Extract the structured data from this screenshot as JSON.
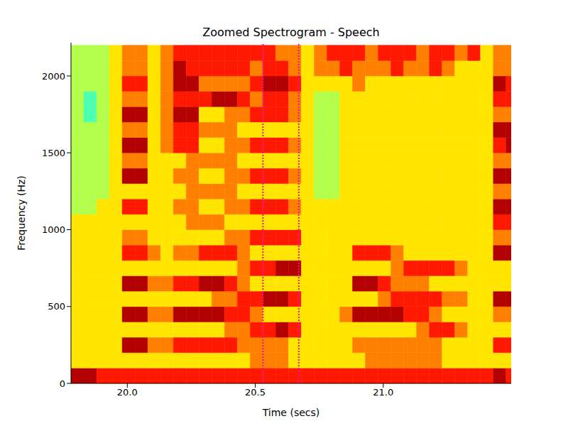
{
  "chart_data": {
    "type": "heatmap",
    "title": "Zoomed Spectrogram - Speech",
    "xlabel": "Time (secs)",
    "ylabel": "Frequency (Hz)",
    "xlim": [
      19.78,
      21.5
    ],
    "xticks": [
      {
        "value": 20,
        "label": "20.0"
      },
      {
        "value": 20.5,
        "label": "20.5"
      },
      {
        "value": 21,
        "label": "21.0"
      }
    ],
    "ylim": [
      0,
      2217
    ],
    "yticks": [
      0,
      500,
      1000,
      1500,
      2000
    ],
    "grid": false,
    "x_edges": [
      19.78,
      19.83,
      19.88,
      19.93,
      19.98,
      20.03,
      20.08,
      20.13,
      20.18,
      20.23,
      20.28,
      20.33,
      20.38,
      20.43,
      20.48,
      20.53,
      20.58,
      20.63,
      20.68,
      20.73,
      20.78,
      20.83,
      20.88,
      20.93,
      20.98,
      21.03,
      21.08,
      21.13,
      21.18,
      21.23,
      21.28,
      21.33,
      21.38,
      21.43,
      21.48,
      21.53
    ],
    "y_edges": [
      0,
      100,
      200,
      300,
      400,
      500,
      600,
      700,
      800,
      900,
      1000,
      1100,
      1200,
      1300,
      1400,
      1500,
      1600,
      1700,
      1800,
      1900,
      2000,
      2100,
      2200
    ],
    "cell_range": [
      0,
      5
    ],
    "cells": [
      [
        5,
        5,
        4,
        4,
        4,
        4,
        4,
        4,
        4,
        4,
        4,
        4,
        4,
        4,
        4,
        4,
        4,
        4,
        4,
        4,
        4,
        4,
        4,
        4,
        4,
        4,
        4,
        4,
        4,
        4,
        4,
        4,
        4,
        5,
        4
      ],
      [
        2,
        2,
        2,
        2,
        2,
        2,
        2,
        2,
        2,
        2,
        2,
        2,
        2,
        2,
        3,
        3,
        3,
        2,
        2,
        2,
        2,
        2,
        2,
        3,
        3,
        3,
        3,
        3,
        3,
        2,
        2,
        2,
        2,
        2,
        2
      ],
      [
        2,
        2,
        2,
        2,
        5,
        5,
        3,
        3,
        4,
        4,
        4,
        4,
        4,
        3,
        3,
        3,
        3,
        2,
        2,
        2,
        2,
        2,
        3,
        3,
        3,
        3,
        3,
        3,
        3,
        2,
        2,
        2,
        2,
        4,
        4
      ],
      [
        2,
        2,
        2,
        2,
        2,
        2,
        2,
        2,
        2,
        2,
        2,
        2,
        3,
        3,
        4,
        4,
        5,
        4,
        2,
        2,
        2,
        2,
        2,
        2,
        2,
        2,
        2,
        3,
        4,
        4,
        3,
        2,
        2,
        2,
        2
      ],
      [
        2,
        2,
        2,
        2,
        5,
        5,
        3,
        3,
        5,
        5,
        5,
        5,
        4,
        4,
        3,
        2,
        2,
        2,
        2,
        2,
        2,
        3,
        5,
        5,
        5,
        5,
        4,
        4,
        3,
        2,
        2,
        2,
        2,
        3,
        3
      ],
      [
        2,
        2,
        2,
        2,
        2,
        2,
        2,
        2,
        2,
        2,
        2,
        3,
        3,
        4,
        4,
        5,
        5,
        4,
        2,
        2,
        2,
        2,
        2,
        2,
        3,
        4,
        4,
        4,
        4,
        3,
        3,
        2,
        2,
        5,
        5
      ],
      [
        2,
        2,
        2,
        2,
        5,
        5,
        3,
        3,
        4,
        4,
        5,
        5,
        4,
        3,
        2,
        2,
        2,
        2,
        2,
        2,
        2,
        2,
        5,
        5,
        4,
        3,
        3,
        3,
        2,
        2,
        2,
        2,
        2,
        2,
        2
      ],
      [
        2,
        2,
        2,
        2,
        2,
        2,
        2,
        2,
        2,
        2,
        2,
        2,
        2,
        3,
        4,
        4,
        5,
        5,
        2,
        2,
        2,
        2,
        2,
        2,
        2,
        3,
        4,
        4,
        4,
        4,
        3,
        2,
        2,
        2,
        2
      ],
      [
        2,
        2,
        2,
        2,
        4,
        4,
        3,
        2,
        3,
        3,
        4,
        4,
        4,
        3,
        2,
        2,
        2,
        2,
        2,
        2,
        2,
        2,
        4,
        4,
        4,
        3,
        2,
        2,
        2,
        2,
        2,
        2,
        2,
        5,
        5
      ],
      [
        2,
        2,
        2,
        2,
        3,
        3,
        2,
        2,
        2,
        2,
        2,
        2,
        3,
        3,
        4,
        4,
        4,
        4,
        2,
        2,
        2,
        2,
        2,
        2,
        2,
        2,
        2,
        2,
        2,
        2,
        2,
        2,
        2,
        3,
        3
      ],
      [
        2,
        2,
        2,
        2,
        2,
        2,
        2,
        2,
        2,
        3,
        3,
        3,
        2,
        2,
        2,
        2,
        2,
        2,
        2,
        2,
        2,
        2,
        2,
        2,
        2,
        2,
        2,
        2,
        2,
        2,
        2,
        2,
        2,
        4,
        4
      ],
      [
        1,
        1,
        2,
        2,
        4,
        4,
        2,
        2,
        3,
        3,
        2,
        2,
        3,
        3,
        4,
        4,
        4,
        3,
        2,
        2,
        2,
        2,
        2,
        2,
        2,
        2,
        2,
        2,
        2,
        2,
        2,
        2,
        2,
        5,
        5
      ],
      [
        1,
        1,
        1,
        2,
        2,
        2,
        2,
        2,
        2,
        3,
        3,
        3,
        3,
        2,
        2,
        2,
        2,
        2,
        2,
        1,
        1,
        2,
        2,
        2,
        2,
        2,
        2,
        2,
        2,
        2,
        2,
        2,
        2,
        3,
        3
      ],
      [
        1,
        1,
        1,
        2,
        5,
        5,
        2,
        2,
        3,
        3,
        2,
        2,
        3,
        3,
        4,
        4,
        4,
        3,
        2,
        1,
        1,
        2,
        2,
        2,
        2,
        2,
        2,
        2,
        2,
        2,
        2,
        2,
        2,
        5,
        5
      ],
      [
        1,
        1,
        1,
        2,
        3,
        3,
        2,
        2,
        2,
        3,
        3,
        3,
        3,
        2,
        2,
        2,
        2,
        2,
        2,
        1,
        1,
        2,
        2,
        2,
        2,
        2,
        2,
        2,
        2,
        2,
        2,
        2,
        2,
        3,
        3
      ],
      [
        1,
        1,
        1,
        2,
        5,
        5,
        2,
        3,
        4,
        4,
        2,
        2,
        3,
        3,
        4,
        4,
        4,
        3,
        2,
        1,
        1,
        2,
        2,
        2,
        2,
        2,
        2,
        2,
        2,
        2,
        2,
        2,
        2,
        4,
        5
      ],
      [
        1,
        1,
        1,
        2,
        3,
        3,
        2,
        3,
        4,
        4,
        3,
        3,
        3,
        2,
        2,
        2,
        2,
        2,
        2,
        1,
        1,
        2,
        2,
        2,
        2,
        2,
        2,
        2,
        2,
        2,
        2,
        2,
        2,
        5,
        5
      ],
      [
        1,
        0,
        1,
        2,
        5,
        5,
        2,
        3,
        5,
        5,
        2,
        2,
        3,
        3,
        4,
        4,
        4,
        3,
        2,
        1,
        1,
        2,
        2,
        2,
        2,
        2,
        2,
        2,
        2,
        2,
        2,
        2,
        2,
        3,
        3
      ],
      [
        1,
        0,
        1,
        2,
        3,
        3,
        2,
        3,
        4,
        4,
        4,
        5,
        5,
        4,
        3,
        4,
        4,
        3,
        2,
        1,
        1,
        2,
        2,
        2,
        2,
        2,
        2,
        2,
        2,
        2,
        2,
        2,
        2,
        4,
        4
      ],
      [
        1,
        1,
        1,
        2,
        4,
        4,
        2,
        3,
        5,
        5,
        3,
        3,
        3,
        3,
        4,
        5,
        5,
        4,
        2,
        2,
        2,
        2,
        3,
        2,
        2,
        2,
        2,
        2,
        2,
        2,
        2,
        2,
        2,
        5,
        4
      ],
      [
        1,
        1,
        1,
        2,
        3,
        3,
        2,
        3,
        5,
        4,
        4,
        4,
        4,
        4,
        3,
        4,
        4,
        3,
        2,
        3,
        3,
        4,
        3,
        3,
        3,
        4,
        3,
        3,
        4,
        3,
        2,
        2,
        2,
        3,
        3
      ],
      [
        1,
        1,
        1,
        2,
        3,
        3,
        2,
        3,
        4,
        4,
        4,
        4,
        4,
        4,
        4,
        4,
        3,
        3,
        2,
        3,
        4,
        4,
        4,
        3,
        4,
        4,
        4,
        3,
        4,
        4,
        3,
        4,
        2,
        3,
        3
      ]
    ],
    "vlines": {
      "x": [
        20.53,
        20.67
      ],
      "color": "#e8199a",
      "line_style": "dotted"
    }
  }
}
